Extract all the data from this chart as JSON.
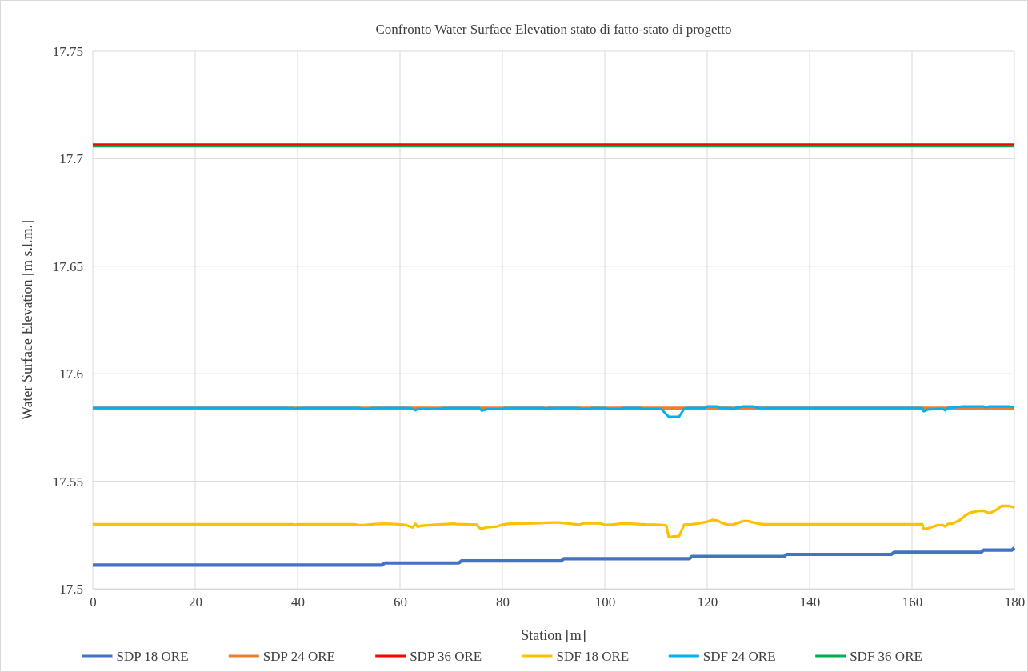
{
  "chart_data": {
    "type": "line",
    "title": "Confronto  Water Surface Elevation  stato di fatto-stato di progetto",
    "xlabel": "Station  [m]",
    "ylabel": "Water Surface  Elevation  [m s.l.m.]",
    "xlim": [
      0,
      180
    ],
    "xticks": [
      0,
      20,
      40,
      60,
      80,
      100,
      120,
      140,
      160,
      180
    ],
    "ylim": [
      17.5,
      17.75
    ],
    "yticks": [
      17.5,
      17.55,
      17.6,
      17.65,
      17.7,
      17.75
    ],
    "grid": true,
    "legend": "bottom",
    "marker": "none",
    "line_style": "solid",
    "series": [
      {
        "name": "SDP 18 ORE",
        "color": "#4472c4",
        "x": [
          0,
          56.5,
          57,
          71.5,
          72,
          91.5,
          92,
          116.5,
          117,
          135,
          135.5,
          156,
          156.5,
          173.5,
          174,
          179.5,
          180
        ],
        "values": [
          17.511,
          17.511,
          17.512,
          17.512,
          17.513,
          17.513,
          17.514,
          17.514,
          17.515,
          17.515,
          17.516,
          17.516,
          17.517,
          17.517,
          17.518,
          17.518,
          17.519
        ]
      },
      {
        "name": "SDP 24 ORE",
        "color": "#ed7d31",
        "x": [
          0,
          180
        ],
        "values": [
          17.584,
          17.584
        ]
      },
      {
        "name": "SDP 36 ORE",
        "color": "#ff0000",
        "x": [
          0,
          180
        ],
        "values": [
          17.7065,
          17.7065
        ]
      },
      {
        "name": "SDF 18 ORE",
        "color": "#ffc000",
        "x": [
          0,
          39,
          39.5,
          40,
          51,
          52,
          53,
          55,
          57,
          59,
          60,
          61,
          62,
          62.5,
          63,
          63.5,
          64,
          67,
          70.5,
          71,
          75,
          75.5,
          76,
          77,
          79,
          80,
          81,
          86,
          90,
          91,
          95,
          96,
          99,
          100,
          101,
          103,
          105,
          108,
          111,
          112,
          112.5,
          113.5,
          114.5,
          115.5,
          117,
          118,
          120,
          121,
          122,
          123,
          124,
          125,
          127,
          128,
          130,
          131,
          162,
          162.3,
          163,
          165,
          166,
          166.5,
          167,
          168,
          169.5,
          170.5,
          171.5,
          173,
          174,
          175,
          176,
          177.5,
          179,
          180
        ],
        "values": [
          17.53,
          17.53,
          17.5297,
          17.53,
          17.53,
          17.5296,
          17.5296,
          17.5301,
          17.5303,
          17.5301,
          17.5299,
          17.5297,
          17.529,
          17.5285,
          17.5302,
          17.5288,
          17.5293,
          17.5298,
          17.5303,
          17.5301,
          17.5298,
          17.5283,
          17.5279,
          17.5286,
          17.529,
          17.5298,
          17.5302,
          17.5305,
          17.5308,
          17.5308,
          17.5298,
          17.5305,
          17.5305,
          17.5297,
          17.5297,
          17.5303,
          17.5303,
          17.5299,
          17.5297,
          17.5294,
          17.524,
          17.5243,
          17.5245,
          17.5298,
          17.53,
          17.5303,
          17.5312,
          17.532,
          17.5317,
          17.5305,
          17.5298,
          17.5298,
          17.5315,
          17.5315,
          17.5303,
          17.53,
          17.53,
          17.5277,
          17.528,
          17.5296,
          17.5296,
          17.529,
          17.5302,
          17.5304,
          17.5322,
          17.5343,
          17.5355,
          17.5362,
          17.5363,
          17.5352,
          17.536,
          17.5385,
          17.5385,
          17.5378
        ]
      },
      {
        "name": "SDF 24 ORE",
        "color": "#00b0f0",
        "x": [
          0,
          39,
          39.5,
          40,
          52,
          52.5,
          54,
          54.5,
          62,
          62.5,
          63,
          63.5,
          64,
          68,
          68.5,
          75.5,
          76,
          77,
          80,
          80.5,
          88,
          88.5,
          89,
          95,
          95.5,
          97,
          97.5,
          100,
          100.5,
          103,
          103.5,
          107,
          107.5,
          111,
          112.5,
          114.5,
          115.5,
          116,
          119.5,
          120,
          122,
          122.5,
          124.5,
          125,
          125.5,
          127,
          129,
          130,
          162,
          162.3,
          163,
          165,
          166,
          166.5,
          167,
          170,
          174,
          174.5,
          175,
          175.5,
          179,
          180
        ],
        "values": [
          17.5841,
          17.5841,
          17.5835,
          17.5841,
          17.5841,
          17.5836,
          17.5836,
          17.5841,
          17.5841,
          17.5836,
          17.583,
          17.5836,
          17.5836,
          17.5836,
          17.5841,
          17.5841,
          17.5828,
          17.5835,
          17.5835,
          17.5841,
          17.5841,
          17.5835,
          17.5841,
          17.5841,
          17.5836,
          17.5836,
          17.5841,
          17.5841,
          17.5836,
          17.5836,
          17.5841,
          17.5841,
          17.5836,
          17.5836,
          17.58,
          17.58,
          17.5838,
          17.5841,
          17.5841,
          17.5848,
          17.5848,
          17.5841,
          17.5841,
          17.5835,
          17.5841,
          17.5848,
          17.5848,
          17.5841,
          17.5841,
          17.5825,
          17.5833,
          17.5836,
          17.5836,
          17.583,
          17.5841,
          17.5848,
          17.5848,
          17.5843,
          17.5848,
          17.5848,
          17.5848,
          17.5842
        ]
      },
      {
        "name": "SDF 36 ORE",
        "color": "#00b050",
        "x": [
          0,
          180
        ],
        "values": [
          17.7058,
          17.7058
        ]
      }
    ]
  }
}
